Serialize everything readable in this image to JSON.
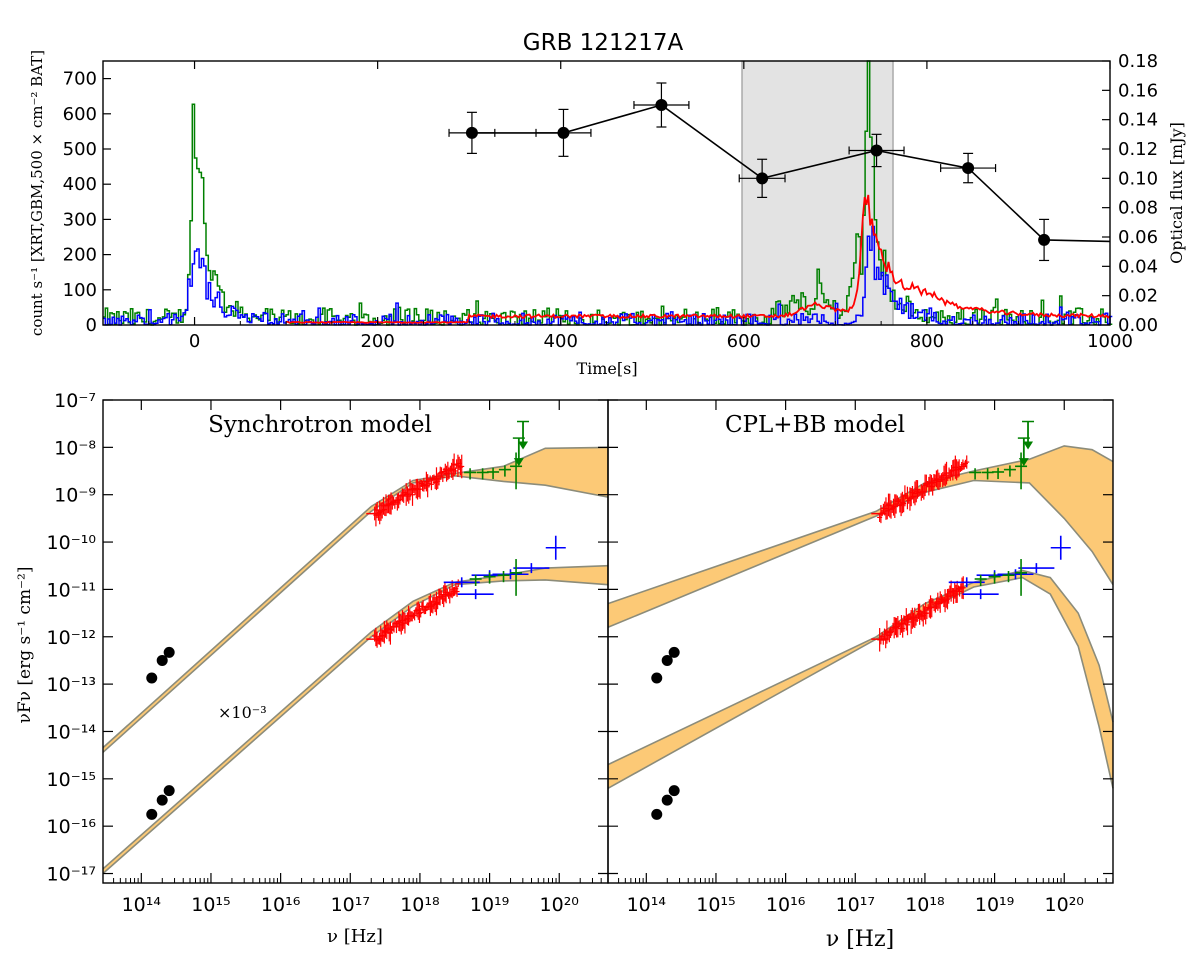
{
  "figure": {
    "title": "GRB 121217A"
  },
  "top_panel": {
    "ylabel_left": "count s⁻¹ [XRT,GBM,500 × cm⁻² BAT]",
    "ylabel_right": "Optical flux [mJy]",
    "xlabel": "Time[s]",
    "x_ticks": [
      "0",
      "200",
      "400",
      "600",
      "800",
      "1000"
    ],
    "y_ticks_left": [
      "0",
      "100",
      "200",
      "300",
      "400",
      "500",
      "600",
      "700"
    ],
    "y_ticks_right": [
      "0.00",
      "0.02",
      "0.04",
      "0.06",
      "0.08",
      "0.10",
      "0.12",
      "0.14",
      "0.16",
      "0.18"
    ]
  },
  "bottom_left": {
    "title": "Synchrotron model",
    "annotation": "×10⁻³",
    "xlabel": "ν [Hz]",
    "ylabel": "νFν [erg s⁻¹ cm⁻²]"
  },
  "bottom_right": {
    "title": "CPL+BB model",
    "xlabel": "ν [Hz]"
  },
  "sed_ticks": {
    "x_ticks": [
      "10¹⁴",
      "10¹⁵",
      "10¹⁶",
      "10¹⁷",
      "10¹⁸",
      "10¹⁹",
      "10²⁰"
    ],
    "y_ticks": [
      "10⁻¹⁷",
      "10⁻¹⁶",
      "10⁻¹⁵",
      "10⁻¹⁴",
      "10⁻¹³",
      "10⁻¹²",
      "10⁻¹¹",
      "10⁻¹⁰",
      "10⁻⁹",
      "10⁻⁸",
      "10⁻⁷"
    ]
  },
  "colors": {
    "xrt": "#ff0000",
    "gbm": "#008000",
    "bat": "#0000ff",
    "band_fill": "#fbc05e",
    "band_edge": "#8c8c7a",
    "shade": "#e3e3e3",
    "optical": "#000000"
  },
  "chart_data": [
    {
      "type": "line",
      "panel": "light curve",
      "title": "GRB 121217A",
      "xlabel": "Time[s]",
      "ylabel": "count s⁻¹ [XRT,GBM,500 × cm⁻² BAT]",
      "y2label": "Optical flux [mJy]",
      "xlim": [
        -100,
        1000
      ],
      "ylim": [
        0,
        750
      ],
      "y2lim": [
        0,
        0.18
      ],
      "shaded_interval": [
        598,
        763
      ],
      "optical": {
        "name": "Optical",
        "x": [
          303,
          403,
          510,
          620,
          745,
          845,
          928
        ],
        "xerr": [
          25,
          30,
          30,
          25,
          30,
          30,
          0
        ],
        "y": [
          0.131,
          0.131,
          0.15,
          0.1,
          0.119,
          0.107,
          0.058
        ],
        "yerr": [
          0.014,
          0.016,
          0.015,
          0.013,
          0.011,
          0.01,
          0.014
        ],
        "tail_end": [
          1000,
          0.057
        ]
      },
      "series": [
        {
          "name": "GBM",
          "color": "green",
          "baseline": 22,
          "pulses": [
            {
              "t": 0,
              "height": 450,
              "width": 8
            },
            {
              "t": 8,
              "height": 150,
              "width": 20
            },
            {
              "t": 655,
              "height": 50,
              "width": 25
            },
            {
              "t": 680,
              "height": 110,
              "width": 6
            },
            {
              "t": 735,
              "height": 640,
              "width": 6
            },
            {
              "t": 725,
              "height": 200,
              "width": 15
            },
            {
              "t": 750,
              "height": 90,
              "width": 20
            }
          ]
        },
        {
          "name": "BAT",
          "color": "blue",
          "baseline": 15,
          "pulses": [
            {
              "t": 0,
              "height": 205,
              "width": 10
            },
            {
              "t": 10,
              "height": 60,
              "width": 25
            },
            {
              "t": 738,
              "height": 230,
              "width": 10
            },
            {
              "t": 755,
              "height": 60,
              "width": 20
            }
          ]
        },
        {
          "name": "XRT",
          "color": "red",
          "start": 100,
          "baseline": 25,
          "pulses": [
            {
              "t": 680,
              "height": 35,
              "width": 30
            },
            {
              "t": 735,
              "height": 290,
              "width": 12
            },
            {
              "t": 755,
              "height": 90,
              "width": 35
            },
            {
              "t": 800,
              "height": 40,
              "width": 50
            }
          ]
        }
      ]
    },
    {
      "type": "scatter",
      "panel": "SED",
      "model": "Synchrotron model",
      "xlabel": "ν [Hz]",
      "ylabel": "νFν [erg s⁻¹ cm⁻²]",
      "xlim_log10": [
        13.45,
        20.7
      ],
      "ylim_log10": [
        -17.2,
        -7
      ],
      "annotation": "×10⁻³",
      "upper": {
        "optical_log": [
          [
            14.15,
            -12.87
          ],
          [
            14.3,
            -12.5
          ],
          [
            14.4,
            -12.33
          ]
        ],
        "band_upper_log": [
          [
            13.45,
            -14.34
          ],
          [
            17.3,
            -9.25
          ],
          [
            17.9,
            -8.7
          ],
          [
            18.5,
            -8.55
          ],
          [
            19.2,
            -8.4
          ],
          [
            19.8,
            -8.02
          ],
          [
            20.7,
            -8.0
          ]
        ],
        "band_lower_log": [
          [
            13.45,
            -14.44
          ],
          [
            17.3,
            -9.35
          ],
          [
            17.9,
            -8.75
          ],
          [
            18.5,
            -8.6
          ],
          [
            19.2,
            -8.72
          ],
          [
            19.8,
            -8.8
          ],
          [
            20.7,
            -9.05
          ]
        ],
        "xrt_range_log": [
          17.35,
          18.6
        ],
        "xrt_y_log": [
          -9.4,
          -8.35
        ],
        "gbm_points_log": [
          [
            18.72,
            -8.53
          ],
          [
            18.9,
            -8.53
          ],
          [
            19.05,
            -8.52
          ],
          [
            19.22,
            -8.47
          ],
          [
            19.38,
            -8.4
          ]
        ],
        "gbm_upper_limits_log": [
          [
            19.42,
            -8.1
          ],
          [
            19.48,
            -7.75
          ]
        ]
      },
      "lower": {
        "optical_log": [
          [
            14.15,
            -15.75
          ],
          [
            14.3,
            -15.45
          ],
          [
            14.4,
            -15.25
          ]
        ],
        "band_upper_log": [
          [
            13.45,
            -16.9
          ],
          [
            17.3,
            -11.9
          ],
          [
            17.9,
            -11.25
          ],
          [
            18.5,
            -10.85
          ],
          [
            19.2,
            -10.7
          ],
          [
            19.8,
            -10.55
          ],
          [
            20.7,
            -10.5
          ]
        ],
        "band_lower_log": [
          [
            13.45,
            -17.0
          ],
          [
            17.3,
            -12.0
          ],
          [
            17.9,
            -11.35
          ],
          [
            18.5,
            -10.9
          ],
          [
            19.2,
            -10.82
          ],
          [
            19.8,
            -10.8
          ],
          [
            20.7,
            -10.9
          ]
        ],
        "xrt_range_log": [
          17.35,
          18.55
        ],
        "xrt_y_log": [
          -12.05,
          -10.95
        ],
        "bat_points_log": [
          [
            18.6,
            -10.85
          ],
          [
            18.8,
            -11.1
          ],
          [
            19.0,
            -10.7
          ],
          [
            19.3,
            -10.68
          ],
          [
            19.6,
            -10.55
          ],
          [
            19.95,
            -10.12
          ]
        ],
        "gbm_points_log": [
          [
            18.8,
            -10.78
          ],
          [
            19.0,
            -10.73
          ],
          [
            19.2,
            -10.7
          ],
          [
            19.38,
            -10.65
          ]
        ]
      }
    },
    {
      "type": "scatter",
      "panel": "SED",
      "model": "CPL+BB model",
      "xlabel": "ν [Hz]",
      "xlim_log10": [
        13.45,
        20.7
      ],
      "ylim_log10": [
        -17.2,
        -7
      ],
      "upper": {
        "optical_log": [
          [
            14.15,
            -12.87
          ],
          [
            14.3,
            -12.5
          ],
          [
            14.4,
            -12.33
          ]
        ],
        "band_upper_log": [
          [
            13.45,
            -11.3
          ],
          [
            17.3,
            -9.35
          ],
          [
            18.0,
            -8.75
          ],
          [
            18.7,
            -8.5
          ],
          [
            19.5,
            -8.25
          ],
          [
            20.0,
            -7.97
          ],
          [
            20.4,
            -8.05
          ],
          [
            20.7,
            -8.3
          ]
        ],
        "band_lower_log": [
          [
            13.45,
            -11.8
          ],
          [
            17.3,
            -9.45
          ],
          [
            18.0,
            -8.95
          ],
          [
            18.7,
            -8.7
          ],
          [
            19.5,
            -8.75
          ],
          [
            20.0,
            -9.5
          ],
          [
            20.4,
            -10.2
          ],
          [
            20.7,
            -10.9
          ]
        ],
        "xrt_range_log": [
          17.35,
          18.6
        ],
        "xrt_y_log": [
          -9.4,
          -8.35
        ],
        "gbm_points_log": [
          [
            18.72,
            -8.53
          ],
          [
            18.9,
            -8.53
          ],
          [
            19.05,
            -8.52
          ],
          [
            19.22,
            -8.47
          ],
          [
            19.38,
            -8.4
          ]
        ],
        "gbm_upper_limits_log": [
          [
            19.42,
            -8.1
          ],
          [
            19.48,
            -7.75
          ]
        ]
      },
      "lower": {
        "optical_log": [
          [
            14.15,
            -15.75
          ],
          [
            14.3,
            -15.45
          ],
          [
            14.4,
            -15.25
          ]
        ],
        "band_upper_log": [
          [
            13.45,
            -14.7
          ],
          [
            17.3,
            -12.0
          ],
          [
            18.0,
            -11.3
          ],
          [
            18.7,
            -10.85
          ],
          [
            19.4,
            -10.6
          ],
          [
            19.8,
            -10.75
          ],
          [
            20.2,
            -11.5
          ],
          [
            20.5,
            -12.6
          ],
          [
            20.7,
            -13.8
          ]
        ],
        "band_lower_log": [
          [
            13.45,
            -15.2
          ],
          [
            17.3,
            -12.05
          ],
          [
            18.0,
            -11.45
          ],
          [
            18.7,
            -10.95
          ],
          [
            19.4,
            -10.75
          ],
          [
            19.8,
            -11.1
          ],
          [
            20.2,
            -12.2
          ],
          [
            20.5,
            -13.9
          ],
          [
            20.7,
            -15.2
          ]
        ],
        "xrt_range_log": [
          17.35,
          18.55
        ],
        "xrt_y_log": [
          -12.05,
          -10.95
        ],
        "bat_points_log": [
          [
            18.6,
            -10.85
          ],
          [
            18.8,
            -11.1
          ],
          [
            19.0,
            -10.7
          ],
          [
            19.3,
            -10.68
          ],
          [
            19.6,
            -10.55
          ],
          [
            19.95,
            -10.12
          ]
        ],
        "gbm_points_log": [
          [
            18.8,
            -10.78
          ],
          [
            19.0,
            -10.73
          ],
          [
            19.2,
            -10.7
          ],
          [
            19.38,
            -10.65
          ]
        ]
      }
    }
  ]
}
